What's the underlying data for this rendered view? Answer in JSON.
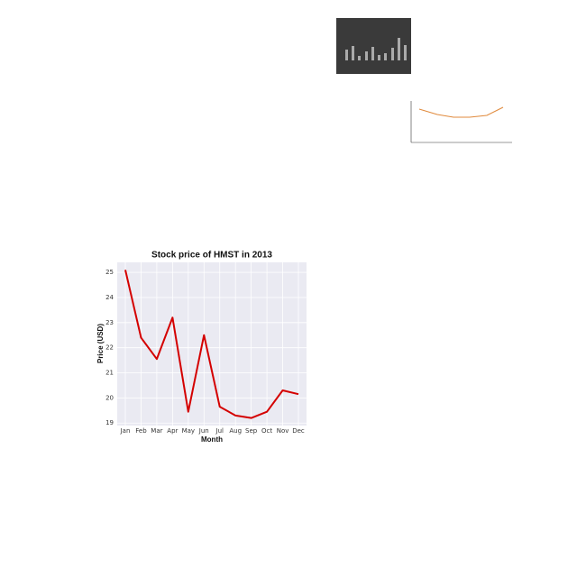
{
  "chart_data": {
    "type": "line",
    "title": "Stock price of HMST in 2013",
    "x_label": "Month",
    "y_label": "Price (USD)",
    "categories": [
      "Jan",
      "Feb",
      "Mar",
      "Apr",
      "May",
      "Jun",
      "Jul",
      "Aug",
      "Sep",
      "Oct",
      "Nov",
      "Dec"
    ],
    "series": [
      {
        "color": "#d40000",
        "values": [
          25.1,
          22.4,
          21.55,
          23.2,
          19.45,
          22.5,
          19.65,
          19.3,
          19.2,
          19.45,
          20.3,
          20.15
        ]
      }
    ],
    "ylim": [
      18.9,
      25.4
    ],
    "yticks": [
      19,
      20,
      21,
      22,
      23,
      24,
      25
    ],
    "grid": true
  }
}
